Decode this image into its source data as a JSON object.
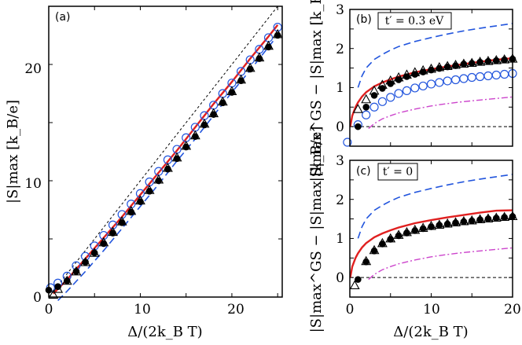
{
  "chart_data": [
    {
      "type": "line",
      "panel_label": "(a)",
      "xlabel": "Δ/(2k_B T)",
      "ylabel": "|S|max [k_B/e]",
      "xlim": [
        0,
        25.5
      ],
      "ylim": [
        0,
        25
      ],
      "xticks": [
        "0",
        "10",
        "20"
      ],
      "yticks": [
        "0",
        "10",
        "20"
      ],
      "series": [
        {
          "style": "black-dotted",
          "x": [
            0,
            25
          ],
          "y": [
            0,
            25
          ]
        },
        {
          "style": "blue-dashed",
          "x": [
            1,
            2,
            4,
            6,
            8,
            10,
            12,
            14,
            16,
            18,
            20,
            22,
            24,
            25
          ],
          "y": [
            -0.3,
            0.5,
            2.2,
            4.0,
            5.9,
            7.8,
            9.7,
            11.7,
            13.6,
            15.6,
            17.6,
            19.5,
            21.5,
            22.5
          ]
        },
        {
          "style": "red-solid",
          "x": [
            0.5,
            2,
            4,
            6,
            8,
            10,
            12,
            14,
            16,
            18,
            20,
            22,
            24,
            25
          ],
          "y": [
            0.3,
            1.5,
            3.3,
            5.1,
            6.9,
            8.8,
            10.7,
            12.6,
            14.6,
            16.6,
            18.5,
            20.5,
            22.4,
            23.4
          ]
        },
        {
          "style": "open-blue-circle",
          "x": [
            0.2,
            1,
            2,
            3,
            4,
            5,
            6,
            7,
            8,
            9,
            10,
            11,
            12,
            13,
            14,
            15,
            16,
            17,
            18,
            19,
            20,
            21,
            22,
            23,
            24,
            25
          ],
          "y": [
            0.8,
            1.2,
            1.8,
            2.7,
            3.5,
            4.4,
            5.3,
            6.2,
            7.1,
            8.0,
            8.9,
            9.9,
            10.8,
            11.8,
            12.7,
            13.7,
            14.6,
            15.6,
            16.5,
            17.5,
            18.4,
            19.4,
            20.4,
            21.3,
            22.3,
            23.2
          ]
        },
        {
          "style": "filled-black-circle",
          "x": [
            0,
            1,
            2,
            3,
            4,
            5,
            6,
            7,
            8,
            9,
            10,
            11,
            12,
            13,
            14,
            15,
            16,
            17,
            18,
            19,
            20,
            21,
            22,
            23,
            24,
            25
          ],
          "y": [
            0.6,
            0.9,
            1.4,
            2.2,
            3.0,
            3.8,
            4.6,
            5.5,
            6.4,
            7.3,
            8.2,
            9.1,
            10.0,
            11.0,
            11.9,
            12.9,
            13.8,
            14.8,
            15.7,
            16.7,
            17.6,
            18.6,
            19.6,
            20.5,
            21.5,
            22.5
          ]
        },
        {
          "style": "open-black-triangle",
          "x": [
            0.5,
            1,
            2,
            3,
            4,
            5,
            6,
            7,
            8,
            9,
            10,
            11,
            12,
            13,
            14,
            15,
            16,
            17,
            18,
            19,
            20,
            21,
            22,
            23,
            24,
            25
          ],
          "y": [
            0.2,
            0.7,
            1.4,
            2.2,
            3.0,
            3.8,
            4.7,
            5.6,
            6.5,
            7.4,
            8.3,
            9.2,
            10.1,
            11.1,
            12.0,
            13.0,
            13.9,
            14.9,
            15.8,
            16.8,
            17.7,
            18.7,
            19.7,
            20.6,
            21.6,
            22.6
          ]
        }
      ]
    },
    {
      "type": "line",
      "panel_label": "(b)",
      "box_label": "t′ = 0.3 eV",
      "xlabel": "",
      "ylabel": "|S|max^GS − |S|max [k_B/e]",
      "xlim": [
        0,
        20
      ],
      "ylim": [
        -0.5,
        3
      ],
      "xticks": [],
      "yticks": [
        "0",
        "1",
        "2",
        "3"
      ],
      "series": [
        {
          "style": "black-dashed-baseline",
          "x": [
            0,
            20
          ],
          "y": [
            0,
            0
          ]
        },
        {
          "style": "blue-dashed",
          "x": [
            1,
            1.5,
            2,
            3,
            4,
            5,
            6,
            8,
            10,
            12,
            14,
            16,
            18,
            20
          ],
          "y": [
            1.0,
            1.3,
            1.5,
            1.72,
            1.85,
            1.96,
            2.05,
            2.18,
            2.28,
            2.37,
            2.45,
            2.52,
            2.58,
            2.64
          ]
        },
        {
          "style": "red-solid",
          "x": [
            0.05,
            0.3,
            0.7,
            1,
            1.5,
            2,
            3,
            4,
            5,
            6,
            8,
            10,
            12,
            14,
            16,
            18,
            20
          ],
          "y": [
            0.0,
            0.28,
            0.5,
            0.62,
            0.77,
            0.88,
            1.03,
            1.13,
            1.21,
            1.28,
            1.39,
            1.47,
            1.54,
            1.6,
            1.66,
            1.71,
            1.75
          ]
        },
        {
          "style": "magenta-dashdot",
          "x": [
            2.3,
            3,
            4,
            5,
            6,
            8,
            10,
            12,
            14,
            16,
            18,
            20
          ],
          "y": [
            -0.05,
            0.08,
            0.2,
            0.28,
            0.35,
            0.45,
            0.53,
            0.59,
            0.64,
            0.68,
            0.72,
            0.76
          ]
        },
        {
          "style": "open-blue-circle",
          "x": [
            -0.3,
            1,
            2,
            3,
            4,
            5,
            6,
            7,
            8,
            9,
            10,
            11,
            12,
            13,
            14,
            15,
            16,
            17,
            18,
            19,
            20
          ],
          "y": [
            -0.4,
            0.05,
            0.3,
            0.5,
            0.64,
            0.75,
            0.85,
            0.92,
            0.99,
            1.04,
            1.09,
            1.13,
            1.17,
            1.2,
            1.23,
            1.26,
            1.28,
            1.3,
            1.32,
            1.34,
            1.36
          ]
        },
        {
          "style": "filled-black-circle",
          "x": [
            1,
            2,
            3,
            4,
            5,
            6,
            7,
            8,
            9,
            10,
            11,
            12,
            13,
            14,
            15,
            16,
            17,
            18,
            19,
            20
          ],
          "y": [
            0.0,
            0.5,
            0.8,
            0.98,
            1.1,
            1.2,
            1.28,
            1.34,
            1.4,
            1.45,
            1.49,
            1.53,
            1.56,
            1.6,
            1.62,
            1.65,
            1.67,
            1.69,
            1.71,
            1.73
          ]
        },
        {
          "style": "open-black-triangle",
          "x": [
            1,
            2,
            3,
            4,
            5,
            6,
            7,
            8,
            9,
            10,
            11,
            12,
            13,
            14,
            15,
            16,
            17,
            18,
            19,
            20
          ],
          "y": [
            0.45,
            0.7,
            0.92,
            1.07,
            1.18,
            1.26,
            1.33,
            1.39,
            1.44,
            1.48,
            1.52,
            1.55,
            1.58,
            1.61,
            1.63,
            1.66,
            1.68,
            1.7,
            1.72,
            1.74
          ]
        }
      ]
    },
    {
      "type": "line",
      "panel_label": "(c)",
      "box_label": "t′ = 0",
      "xlabel": "Δ/(2k_B T)",
      "ylabel": "|S|max^GS − |S|max [k_B/e]",
      "xlim": [
        0,
        20
      ],
      "ylim": [
        -0.5,
        3
      ],
      "xticks": [
        "0",
        "10",
        "20"
      ],
      "yticks": [
        "0",
        "1",
        "2",
        "3"
      ],
      "series": [
        {
          "style": "black-dashed-baseline",
          "x": [
            0,
            20
          ],
          "y": [
            0,
            0
          ]
        },
        {
          "style": "blue-dashed",
          "x": [
            1,
            1.5,
            2,
            3,
            4,
            5,
            6,
            8,
            10,
            12,
            14,
            16,
            18,
            20
          ],
          "y": [
            1.0,
            1.3,
            1.5,
            1.72,
            1.85,
            1.96,
            2.05,
            2.18,
            2.28,
            2.37,
            2.45,
            2.52,
            2.58,
            2.64
          ]
        },
        {
          "style": "red-solid",
          "x": [
            0.05,
            0.3,
            0.7,
            1,
            1.5,
            2,
            3,
            4,
            5,
            6,
            8,
            10,
            12,
            14,
            16,
            18,
            20
          ],
          "y": [
            0.0,
            0.28,
            0.5,
            0.62,
            0.77,
            0.88,
            1.03,
            1.13,
            1.21,
            1.28,
            1.39,
            1.47,
            1.54,
            1.6,
            1.66,
            1.71,
            1.72
          ]
        },
        {
          "style": "magenta-dashdot",
          "x": [
            2.3,
            3,
            4,
            5,
            6,
            8,
            10,
            12,
            14,
            16,
            18,
            20
          ],
          "y": [
            -0.05,
            0.08,
            0.2,
            0.28,
            0.35,
            0.45,
            0.53,
            0.59,
            0.64,
            0.68,
            0.72,
            0.76
          ]
        },
        {
          "style": "filled-black-circle",
          "x": [
            1,
            2,
            3,
            4,
            5,
            6,
            7,
            8,
            9,
            10,
            11,
            12,
            13,
            14,
            15,
            16,
            17,
            18,
            19,
            20
          ],
          "y": [
            -0.05,
            0.4,
            0.68,
            0.86,
            0.98,
            1.07,
            1.14,
            1.2,
            1.25,
            1.3,
            1.34,
            1.37,
            1.4,
            1.43,
            1.45,
            1.48,
            1.5,
            1.52,
            1.54,
            1.56
          ]
        },
        {
          "style": "open-black-triangle",
          "x": [
            0.6,
            2,
            3,
            4,
            5,
            6,
            7,
            8,
            9,
            10,
            11,
            12,
            13,
            14,
            15,
            16,
            17,
            18,
            19,
            20
          ],
          "y": [
            -0.2,
            0.42,
            0.7,
            0.88,
            1.0,
            1.09,
            1.16,
            1.22,
            1.27,
            1.32,
            1.35,
            1.38,
            1.41,
            1.44,
            1.46,
            1.49,
            1.51,
            1.53,
            1.55,
            1.57
          ]
        }
      ]
    }
  ]
}
